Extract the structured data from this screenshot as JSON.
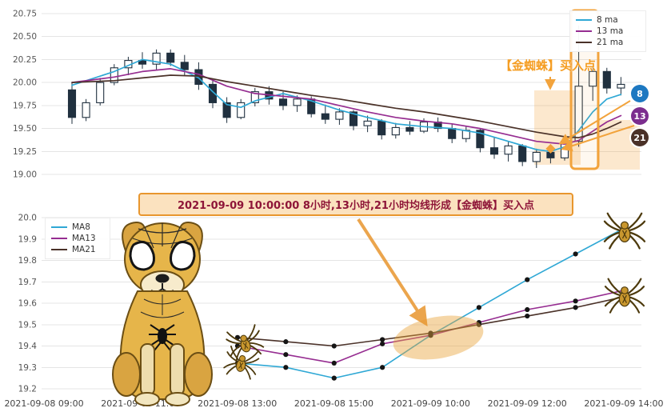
{
  "app": {
    "background": "#ffffff"
  },
  "colors": {
    "ma8": "#2fa8d5",
    "ma13": "#962d91",
    "ma21": "#4a3128",
    "candle": "#20303f",
    "accent_orange": "#f2a33c",
    "arrow_orange": "#e8962e",
    "badge8": "#1d78c1",
    "badge13": "#7b2d8e",
    "badge21": "#4a3128",
    "annotation_title_text": "#8e1538",
    "annotation_title_bg": "#fbe2bf"
  },
  "top_chart": {
    "legend": {
      "items": [
        {
          "label": "8 ma"
        },
        {
          "label": "13 ma"
        },
        {
          "label": "21 ma"
        }
      ]
    },
    "badges": {
      "items": [
        {
          "label": "8"
        },
        {
          "label": "13"
        },
        {
          "label": "21"
        }
      ]
    },
    "annotation_label": "【金蜘蛛】买入点"
  },
  "bottom_chart": {
    "legend": {
      "items": [
        {
          "label": "MA8"
        },
        {
          "label": "MA13"
        },
        {
          "label": "MA21"
        }
      ]
    },
    "title_annotation": "2021-09-09 10:00:00 8小时,13小时,21小时均线形成【金蜘蛛】买入点"
  },
  "chart_data": [
    {
      "type": "candlestick",
      "title": "",
      "ylim": [
        19.0,
        20.75
      ],
      "yticks": [
        "20.75",
        "20.50",
        "20.25",
        "20.00",
        "19.75",
        "19.50",
        "19.25",
        "19.00"
      ],
      "grid": true,
      "legend_position": "top-right",
      "legend": [
        "8 ma",
        "13 ma",
        "21 ma"
      ],
      "candles_ohlc": [
        [
          19.92,
          20.0,
          19.55,
          19.62
        ],
        [
          19.62,
          19.82,
          19.58,
          19.78
        ],
        [
          19.78,
          20.05,
          19.75,
          20.0
        ],
        [
          20.0,
          20.2,
          19.97,
          20.16
        ],
        [
          20.16,
          20.28,
          20.08,
          20.24
        ],
        [
          20.24,
          20.33,
          20.15,
          20.2
        ],
        [
          20.2,
          20.36,
          20.14,
          20.32
        ],
        [
          20.32,
          20.36,
          20.18,
          20.22
        ],
        [
          20.22,
          20.3,
          20.08,
          20.14
        ],
        [
          20.14,
          20.22,
          19.92,
          19.98
        ],
        [
          19.98,
          20.04,
          19.72,
          19.78
        ],
        [
          19.78,
          19.84,
          19.56,
          19.62
        ],
        [
          19.62,
          19.82,
          19.6,
          19.78
        ],
        [
          19.78,
          19.94,
          19.74,
          19.9
        ],
        [
          19.9,
          19.96,
          19.76,
          19.82
        ],
        [
          19.82,
          19.9,
          19.7,
          19.75
        ],
        [
          19.75,
          19.86,
          19.68,
          19.82
        ],
        [
          19.82,
          19.85,
          19.62,
          19.66
        ],
        [
          19.66,
          19.76,
          19.55,
          19.6
        ],
        [
          19.6,
          19.72,
          19.54,
          19.68
        ],
        [
          19.68,
          19.7,
          19.48,
          19.53
        ],
        [
          19.53,
          19.64,
          19.46,
          19.58
        ],
        [
          19.58,
          19.6,
          19.38,
          19.43
        ],
        [
          19.43,
          19.56,
          19.39,
          19.51
        ],
        [
          19.51,
          19.58,
          19.43,
          19.47
        ],
        [
          19.47,
          19.61,
          19.45,
          19.57
        ],
        [
          19.57,
          19.62,
          19.46,
          19.5
        ],
        [
          19.5,
          19.55,
          19.34,
          19.39
        ],
        [
          19.39,
          19.52,
          19.35,
          19.48
        ],
        [
          19.48,
          19.5,
          19.24,
          19.29
        ],
        [
          19.29,
          19.4,
          19.17,
          19.22
        ],
        [
          19.22,
          19.36,
          19.14,
          19.31
        ],
        [
          19.31,
          19.33,
          19.09,
          19.14
        ],
        [
          19.14,
          19.28,
          19.07,
          19.24
        ],
        [
          19.24,
          19.3,
          19.12,
          19.18
        ],
        [
          19.18,
          19.4,
          19.15,
          19.36
        ],
        [
          19.36,
          20.62,
          19.3,
          19.96
        ],
        [
          19.96,
          20.18,
          19.8,
          20.12
        ],
        [
          20.12,
          20.16,
          19.88,
          19.94
        ],
        [
          19.94,
          20.06,
          19.86,
          19.98
        ]
      ],
      "ma_series": [
        {
          "name": "8 ma",
          "color": "#2fa8d5",
          "points": [
            [
              0,
              19.97
            ],
            [
              3,
              20.12
            ],
            [
              5,
              20.25
            ],
            [
              7,
              20.2
            ],
            [
              9,
              20.05
            ],
            [
              10,
              19.9
            ],
            [
              11,
              19.76
            ],
            [
              12,
              19.73
            ],
            [
              13,
              19.8
            ],
            [
              15,
              19.88
            ],
            [
              17,
              19.8
            ],
            [
              19,
              19.7
            ],
            [
              21,
              19.62
            ],
            [
              23,
              19.55
            ],
            [
              25,
              19.52
            ],
            [
              27,
              19.5
            ],
            [
              29,
              19.45
            ],
            [
              31,
              19.36
            ],
            [
              33,
              19.27
            ],
            [
              34,
              19.25
            ],
            [
              35,
              19.3
            ],
            [
              36,
              19.48
            ],
            [
              37,
              19.68
            ],
            [
              38,
              19.82
            ],
            [
              39,
              19.87
            ]
          ]
        },
        {
          "name": "13 ma",
          "color": "#962d91",
          "points": [
            [
              0,
              20.0
            ],
            [
              3,
              20.06
            ],
            [
              5,
              20.12
            ],
            [
              7,
              20.15
            ],
            [
              9,
              20.09
            ],
            [
              11,
              19.96
            ],
            [
              13,
              19.88
            ],
            [
              15,
              19.85
            ],
            [
              17,
              19.82
            ],
            [
              19,
              19.75
            ],
            [
              21,
              19.68
            ],
            [
              23,
              19.62
            ],
            [
              25,
              19.58
            ],
            [
              27,
              19.55
            ],
            [
              29,
              19.5
            ],
            [
              31,
              19.43
            ],
            [
              33,
              19.36
            ],
            [
              35,
              19.33
            ],
            [
              36,
              19.37
            ],
            [
              37,
              19.47
            ],
            [
              38,
              19.57
            ],
            [
              39,
              19.64
            ]
          ]
        },
        {
          "name": "21 ma",
          "color": "#4a3128",
          "points": [
            [
              0,
              20.0
            ],
            [
              3,
              20.02
            ],
            [
              5,
              20.05
            ],
            [
              7,
              20.08
            ],
            [
              9,
              20.07
            ],
            [
              11,
              20.01
            ],
            [
              13,
              19.96
            ],
            [
              15,
              19.91
            ],
            [
              17,
              19.86
            ],
            [
              19,
              19.82
            ],
            [
              21,
              19.77
            ],
            [
              23,
              19.72
            ],
            [
              25,
              19.68
            ],
            [
              27,
              19.63
            ],
            [
              29,
              19.58
            ],
            [
              31,
              19.52
            ],
            [
              33,
              19.46
            ],
            [
              35,
              19.41
            ],
            [
              36,
              19.4
            ],
            [
              37,
              19.44
            ],
            [
              38,
              19.5
            ],
            [
              39,
              19.57
            ]
          ]
        }
      ],
      "annotations": {
        "buy_label": "【金蜘蛛】买入点",
        "crossover_marker": {
          "index": 34,
          "value": 19.28
        },
        "note": "golden-spider MA crossover zone highlighted with orange boxes and arrows"
      }
    },
    {
      "type": "line",
      "x": [
        "2021-09-08 13:00",
        "2021-09-08 14:00",
        "2021-09-08 15:00",
        "2021-09-09 09:00",
        "2021-09-09 10:00",
        "2021-09-09 11:00",
        "2021-09-09 12:00",
        "2021-09-09 13:00",
        "2021-09-09 14:00"
      ],
      "xticks": [
        "2021-09-08 09:00",
        "2021-09-08 11:00",
        "2021-09-08 13:00",
        "2021-09-08 15:00",
        "2021-09-09 10:00",
        "2021-09-09 12:00",
        "2021-09-09 14:00"
      ],
      "yticks": [
        "20.0",
        "19.9",
        "19.8",
        "19.7",
        "19.6",
        "19.5",
        "19.4",
        "19.3",
        "19.2"
      ],
      "ylim": [
        19.15,
        20.05
      ],
      "grid": true,
      "legend_position": "top-left",
      "series": [
        {
          "name": "MA8",
          "color": "#2fa8d5",
          "values": [
            19.32,
            19.3,
            19.25,
            19.3,
            19.45,
            19.58,
            19.71,
            19.83,
            19.95
          ]
        },
        {
          "name": "MA13",
          "color": "#962d91",
          "values": [
            19.4,
            19.36,
            19.32,
            19.41,
            19.45,
            19.51,
            19.57,
            19.61,
            19.66
          ]
        },
        {
          "name": "MA21",
          "color": "#4a3128",
          "values": [
            19.44,
            19.42,
            19.4,
            19.43,
            19.46,
            19.5,
            19.54,
            19.58,
            19.63
          ]
        }
      ],
      "title_annotation": "2021-09-09 10:00:00 8小时,13小时,21小时均线形成【金蜘蛛】买入点",
      "crossover": {
        "x": "2021-09-09 10:00",
        "value": 19.45
      }
    }
  ]
}
